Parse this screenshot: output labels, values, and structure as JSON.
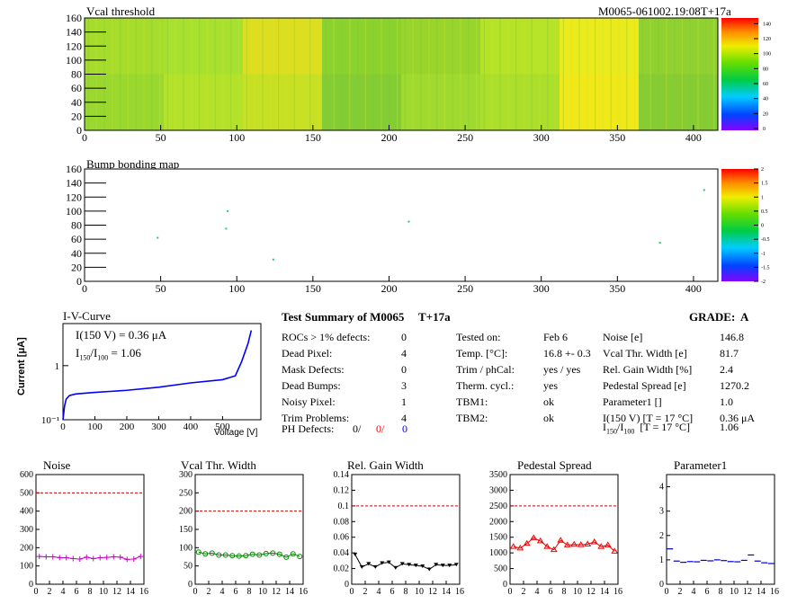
{
  "vcal_map": {
    "title": "Vcal threshold",
    "module_id": "M0065-061002.19:08T+17a",
    "x_ticks": [
      0,
      50,
      100,
      150,
      200,
      250,
      300,
      350,
      400
    ],
    "y_ticks": [
      0,
      20,
      40,
      60,
      80,
      100,
      120,
      140,
      160
    ],
    "colorbar_ticks": [
      0,
      20,
      40,
      60,
      80,
      100,
      120,
      140
    ],
    "xlim": [
      0,
      416
    ],
    "ylim": [
      0,
      160
    ]
  },
  "bump_map": {
    "title": "Bump bonding map",
    "x_ticks": [
      0,
      50,
      100,
      150,
      200,
      250,
      300,
      350,
      400
    ],
    "y_ticks": [
      0,
      20,
      40,
      60,
      80,
      100,
      120,
      140,
      160
    ],
    "colorbar_ticks": [
      -2,
      -1.5,
      -1,
      -0.5,
      0,
      0.5,
      1,
      1.5,
      2
    ],
    "xlim": [
      0,
      416
    ],
    "ylim": [
      0,
      160
    ],
    "points": [
      [
        48,
        62
      ],
      [
        93,
        75
      ],
      [
        94,
        100
      ],
      [
        124,
        31
      ],
      [
        213,
        85
      ],
      [
        378,
        55
      ],
      [
        407,
        130
      ]
    ]
  },
  "iv_curve": {
    "title": "I-V-Curve",
    "ylabel": "Current [μA]",
    "xlabel": "Voltage [V]",
    "x_ticks": [
      0,
      100,
      200,
      300,
      400,
      500
    ],
    "y_ticks": [
      "10⁻¹",
      "1"
    ],
    "line1": "I(150 V) = 0.36 μA",
    "line2": "I",
    "line2_sub1": "150",
    "line2_mid": "/I",
    "line2_sub2": "100",
    "line2_val": " =  1.06",
    "points": [
      [
        0,
        0.1
      ],
      [
        5,
        0.18
      ],
      [
        10,
        0.24
      ],
      [
        20,
        0.28
      ],
      [
        40,
        0.3
      ],
      [
        100,
        0.32
      ],
      [
        200,
        0.35
      ],
      [
        300,
        0.4
      ],
      [
        400,
        0.48
      ],
      [
        500,
        0.55
      ],
      [
        540,
        0.65
      ],
      [
        560,
        1.2
      ],
      [
        580,
        2.6
      ],
      [
        590,
        4.5
      ]
    ]
  },
  "summary": {
    "heading": "Test Summary of M0065",
    "heading_tag": "T+17a",
    "grade": "GRADE:  A",
    "left_rows": [
      {
        "label": "ROCs > 1% defects:",
        "value": "0"
      },
      {
        "label": "Dead Pixel:",
        "value": "4"
      },
      {
        "label": "Mask Defects:",
        "value": "0"
      },
      {
        "label": "Dead Bumps:",
        "value": "3"
      },
      {
        "label": "Noisy Pixel:",
        "value": "1"
      },
      {
        "label": "Trim Problems:",
        "value": "4"
      }
    ],
    "ph_label": "PH Defects:",
    "ph_values": [
      "0/",
      "0/",
      "0"
    ],
    "ph_colors": [
      "#000000",
      "#ff0000",
      "#0000ff"
    ],
    "mid_rows": [
      {
        "label": "Tested on:",
        "value": "Feb 6"
      },
      {
        "label": "Temp. [°C]:",
        "value": "16.8 +- 0.3"
      },
      {
        "label": "Trim / phCal:",
        "value": "yes / yes"
      },
      {
        "label": "Therm. cycl.:",
        "value": "yes"
      },
      {
        "label": "TBM1:",
        "value": "ok"
      },
      {
        "label": "TBM2:",
        "value": "ok"
      }
    ],
    "right_rows": [
      {
        "label": "Noise [e]",
        "value": "146.8"
      },
      {
        "label": "Vcal Thr. Width [e]",
        "value": "81.7"
      },
      {
        "label": "Rel. Gain Width [%]",
        "value": "2.4"
      },
      {
        "label": "Pedestal Spread [e]",
        "value": "1270.2"
      },
      {
        "label": "Parameter1 []",
        "value": "1.0"
      },
      {
        "label": "I(150 V)  [T = 17 °C]",
        "value": "0.36 μA"
      }
    ],
    "ratio_row": {
      "prefix": "I",
      "sub1": "150",
      "mid": "/I",
      "sub2": "100",
      "suffix": "  [T = 17 °C]",
      "value": "1.06"
    }
  },
  "chart_data": [
    {
      "type": "line",
      "title": "Noise",
      "ylim": [
        0,
        600
      ],
      "y_ticks": [
        0,
        100,
        200,
        300,
        400,
        500,
        600
      ],
      "x_ticks": [
        0,
        2,
        4,
        6,
        8,
        10,
        12,
        14,
        16
      ],
      "threshold": 500,
      "color": "#cc00cc",
      "marker": "cross",
      "x": [
        0,
        1,
        2,
        3,
        4,
        5,
        6,
        7,
        8,
        9,
        10,
        11,
        12,
        13,
        14,
        15
      ],
      "values": [
        152,
        150,
        150,
        146,
        145,
        140,
        138,
        148,
        140,
        145,
        147,
        150,
        148,
        136,
        138,
        152
      ]
    },
    {
      "type": "line",
      "title": "Vcal Thr. Width",
      "ylim": [
        0,
        300
      ],
      "y_ticks": [
        0,
        50,
        100,
        150,
        200,
        250,
        300
      ],
      "x_ticks": [
        0,
        2,
        4,
        6,
        8,
        10,
        12,
        14,
        16
      ],
      "threshold": 200,
      "color": "#008800",
      "marker": "circle",
      "x": [
        0,
        1,
        2,
        3,
        4,
        5,
        6,
        7,
        8,
        9,
        10,
        11,
        12,
        13,
        14,
        15
      ],
      "values": [
        88,
        83,
        85,
        80,
        80,
        78,
        77,
        78,
        82,
        80,
        84,
        85,
        82,
        74,
        83,
        76
      ]
    },
    {
      "type": "line",
      "title": "Rel. Gain Width",
      "ylim": [
        0,
        0.14
      ],
      "y_ticks": [
        0,
        0.02,
        0.04,
        0.06,
        0.08,
        0.1,
        0.12,
        0.14
      ],
      "x_ticks": [
        0,
        2,
        4,
        6,
        8,
        10,
        12,
        14,
        16
      ],
      "threshold": 0.1,
      "color": "#000000",
      "marker": "triangle-down",
      "x": [
        0,
        1,
        2,
        3,
        4,
        5,
        6,
        7,
        8,
        9,
        10,
        11,
        12,
        13,
        14,
        15
      ],
      "values": [
        0.038,
        0.022,
        0.026,
        0.022,
        0.027,
        0.028,
        0.021,
        0.026,
        0.025,
        0.024,
        0.023,
        0.019,
        0.025,
        0.024,
        0.024,
        0.025
      ]
    },
    {
      "type": "line",
      "title": "Pedestal Spread",
      "ylim": [
        0,
        3500
      ],
      "y_ticks": [
        0,
        500,
        1000,
        1500,
        2000,
        2500,
        3000,
        3500
      ],
      "x_ticks": [
        0,
        2,
        4,
        6,
        8,
        10,
        12,
        14,
        16
      ],
      "threshold": 2500,
      "color": "#ee0000",
      "marker": "triangle-up",
      "x": [
        0,
        1,
        2,
        3,
        4,
        5,
        6,
        7,
        8,
        9,
        10,
        11,
        12,
        13,
        14,
        15
      ],
      "values": [
        1200,
        1150,
        1300,
        1480,
        1380,
        1200,
        1100,
        1400,
        1250,
        1270,
        1260,
        1280,
        1350,
        1200,
        1250,
        1050
      ]
    },
    {
      "type": "line",
      "title": "Parameter1",
      "ylim": [
        0,
        4.5
      ],
      "y_ticks": [
        0,
        1,
        2,
        3,
        4
      ],
      "x_ticks": [
        0,
        2,
        4,
        6,
        8,
        10,
        12,
        14,
        16
      ],
      "threshold": null,
      "color": "#0000cc",
      "marker": "dash",
      "x": [
        0,
        1,
        2,
        3,
        4,
        5,
        6,
        7,
        8,
        9,
        10,
        11,
        12,
        13,
        14,
        15
      ],
      "values": [
        1.45,
        0.95,
        0.9,
        0.93,
        0.92,
        0.98,
        0.96,
        1.0,
        0.97,
        0.93,
        0.92,
        0.98,
        1.2,
        0.95,
        0.88,
        0.85
      ]
    }
  ]
}
